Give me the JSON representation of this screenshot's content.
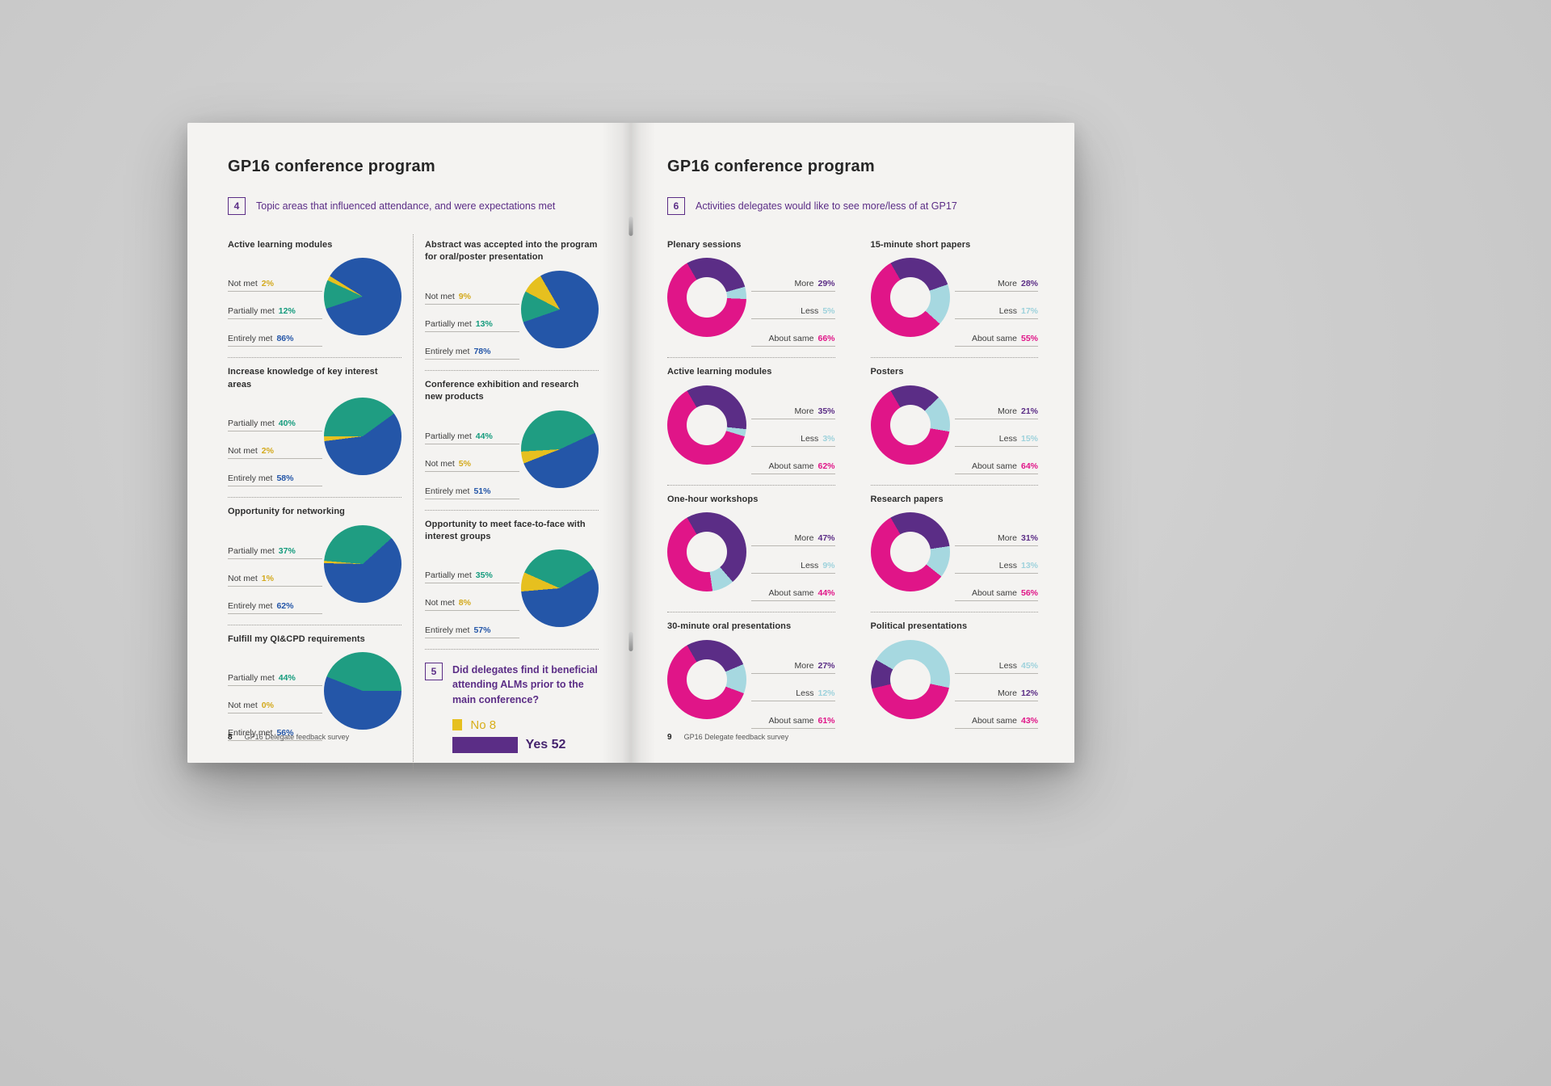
{
  "colors": {
    "not_met": "#e6c01f",
    "not_met_text": "#d3a91c",
    "partially_met": "#1f9d82",
    "partially_met_text": "#149b7d",
    "entirely_met": "#2456a8",
    "more": "#5b2d86",
    "less": "#a6d8e0",
    "less_text": "#9ed2dc",
    "about_same": "#e01588",
    "bar_no_label": "#d8ae1a",
    "bar_yes_label": "#46246e",
    "accent_purple": "#5b2d86"
  },
  "page_left": {
    "title": "GP16 conference program",
    "section": {
      "badge": "4",
      "caption": "Topic areas that influenced attendance, and were expectations met"
    },
    "col1": [
      0,
      1,
      2,
      3
    ],
    "col2": [
      4,
      5,
      6
    ],
    "section5": {
      "badge": "5",
      "caption": "Did delegates find it beneficial attending ALMs prior to the main conference?",
      "chart": 7
    },
    "footer": {
      "num": "8",
      "label": "GP16 Delegate feedback survey"
    }
  },
  "page_right": {
    "title": "GP16 conference program",
    "section": {
      "badge": "6",
      "caption": "Activities delegates would like to see more/less of at GP17"
    },
    "col1": [
      8,
      9,
      10,
      11
    ],
    "col2": [
      12,
      13,
      14,
      15
    ],
    "footer": {
      "num": "9",
      "label": "GP16 Delegate feedback survey"
    }
  },
  "chart_data": [
    {
      "type": "pie",
      "title": "Active learning modules",
      "start_deg": 302,
      "draw_order": [
        2,
        1,
        0
      ],
      "slices": [
        {
          "label": "Not met",
          "value": 2,
          "color": "not_met"
        },
        {
          "label": "Partially met",
          "value": 12,
          "color": "partially_met"
        },
        {
          "label": "Entirely met",
          "value": 86,
          "color": "entirely_met"
        }
      ]
    },
    {
      "type": "pie",
      "title": "Increase knowledge of key interest areas",
      "start_deg": 54,
      "draw_order": [
        2,
        1,
        0
      ],
      "slices": [
        {
          "label": "Partially met",
          "value": 40,
          "color": "partially_met"
        },
        {
          "label": "Not met",
          "value": 2,
          "color": "not_met"
        },
        {
          "label": "Entirely met",
          "value": 58,
          "color": "entirely_met"
        }
      ]
    },
    {
      "type": "pie",
      "title": "Opportunity for networking",
      "start_deg": 48,
      "draw_order": [
        2,
        1,
        0
      ],
      "slices": [
        {
          "label": "Partially met",
          "value": 37,
          "color": "partially_met"
        },
        {
          "label": "Not met",
          "value": 1,
          "color": "not_met"
        },
        {
          "label": "Entirely met",
          "value": 62,
          "color": "entirely_met"
        }
      ]
    },
    {
      "type": "pie",
      "title": "Fulfill my QI&CPD requirements",
      "start_deg": 90,
      "draw_order": [
        2,
        1,
        0
      ],
      "slices": [
        {
          "label": "Partially met",
          "value": 44,
          "color": "partially_met"
        },
        {
          "label": "Not met",
          "value": 0,
          "color": "not_met"
        },
        {
          "label": "Entirely met",
          "value": 56,
          "color": "entirely_met"
        }
      ]
    },
    {
      "type": "pie",
      "title": "Abstract was accepted into the program for oral/poster presentation",
      "start_deg": 330,
      "draw_order": [
        2,
        1,
        0
      ],
      "slices": [
        {
          "label": "Not met",
          "value": 9,
          "color": "not_met"
        },
        {
          "label": "Partially met",
          "value": 13,
          "color": "partially_met"
        },
        {
          "label": "Entirely met",
          "value": 78,
          "color": "entirely_met"
        }
      ]
    },
    {
      "type": "pie",
      "title": "Conference exhibition and research new products",
      "start_deg": 65,
      "draw_order": [
        2,
        1,
        0
      ],
      "slices": [
        {
          "label": "Partially met",
          "value": 44,
          "color": "partially_met"
        },
        {
          "label": "Not met",
          "value": 5,
          "color": "not_met"
        },
        {
          "label": "Entirely met",
          "value": 51,
          "color": "entirely_met"
        }
      ]
    },
    {
      "type": "pie",
      "title": "Opportunity to meet face-to-face with interest groups",
      "start_deg": 60,
      "draw_order": [
        2,
        1,
        0
      ],
      "slices": [
        {
          "label": "Partially met",
          "value": 35,
          "color": "partially_met"
        },
        {
          "label": "Not met",
          "value": 8,
          "color": "not_met"
        },
        {
          "label": "Entirely met",
          "value": 57,
          "color": "entirely_met"
        }
      ]
    },
    {
      "type": "bar",
      "title": "Did delegates find it beneficial attending ALMs prior to the main conference?",
      "categories": [
        "No",
        "Yes"
      ],
      "values": [
        8,
        52
      ],
      "bar_colors": [
        "not_met",
        "more"
      ],
      "label_colors": [
        "bar_no_label",
        "bar_yes_label"
      ]
    },
    {
      "type": "donut",
      "title": "Plenary sessions",
      "start_deg": 330,
      "draw_order": [
        0,
        1,
        2
      ],
      "slices": [
        {
          "label": "More",
          "value": 29,
          "color": "more"
        },
        {
          "label": "Less",
          "value": 5,
          "color": "less"
        },
        {
          "label": "About same",
          "value": 66,
          "color": "about_same"
        }
      ]
    },
    {
      "type": "donut",
      "title": "Active learning modules",
      "start_deg": 330,
      "draw_order": [
        0,
        1,
        2
      ],
      "slices": [
        {
          "label": "More",
          "value": 35,
          "color": "more"
        },
        {
          "label": "Less",
          "value": 3,
          "color": "less"
        },
        {
          "label": "About same",
          "value": 62,
          "color": "about_same"
        }
      ]
    },
    {
      "type": "donut",
      "title": "One-hour workshops",
      "start_deg": 330,
      "draw_order": [
        0,
        1,
        2
      ],
      "slices": [
        {
          "label": "More",
          "value": 47,
          "color": "more"
        },
        {
          "label": "Less",
          "value": 9,
          "color": "less"
        },
        {
          "label": "About same",
          "value": 44,
          "color": "about_same"
        }
      ]
    },
    {
      "type": "donut",
      "title": "30-minute oral presentations",
      "start_deg": 330,
      "draw_order": [
        0,
        1,
        2
      ],
      "slices": [
        {
          "label": "More",
          "value": 27,
          "color": "more"
        },
        {
          "label": "Less",
          "value": 12,
          "color": "less"
        },
        {
          "label": "About same",
          "value": 61,
          "color": "about_same"
        }
      ]
    },
    {
      "type": "donut",
      "title": "15-minute short papers",
      "start_deg": 330,
      "draw_order": [
        0,
        1,
        2
      ],
      "slices": [
        {
          "label": "More",
          "value": 28,
          "color": "more"
        },
        {
          "label": "Less",
          "value": 17,
          "color": "less"
        },
        {
          "label": "About same",
          "value": 55,
          "color": "about_same"
        }
      ]
    },
    {
      "type": "donut",
      "title": "Posters",
      "start_deg": 330,
      "draw_order": [
        0,
        1,
        2
      ],
      "slices": [
        {
          "label": "More",
          "value": 21,
          "color": "more"
        },
        {
          "label": "Less",
          "value": 15,
          "color": "less"
        },
        {
          "label": "About same",
          "value": 64,
          "color": "about_same"
        }
      ]
    },
    {
      "type": "donut",
      "title": "Research papers",
      "start_deg": 330,
      "draw_order": [
        0,
        1,
        2
      ],
      "slices": [
        {
          "label": "More",
          "value": 31,
          "color": "more"
        },
        {
          "label": "Less",
          "value": 13,
          "color": "less"
        },
        {
          "label": "About same",
          "value": 56,
          "color": "about_same"
        }
      ]
    },
    {
      "type": "donut",
      "title": "Political presentations",
      "start_deg": 300,
      "draw_order": [
        0,
        2,
        1
      ],
      "slices": [
        {
          "label": "Less",
          "value": 45,
          "color": "less"
        },
        {
          "label": "More",
          "value": 12,
          "color": "more"
        },
        {
          "label": "About same",
          "value": 43,
          "color": "about_same"
        }
      ]
    }
  ]
}
